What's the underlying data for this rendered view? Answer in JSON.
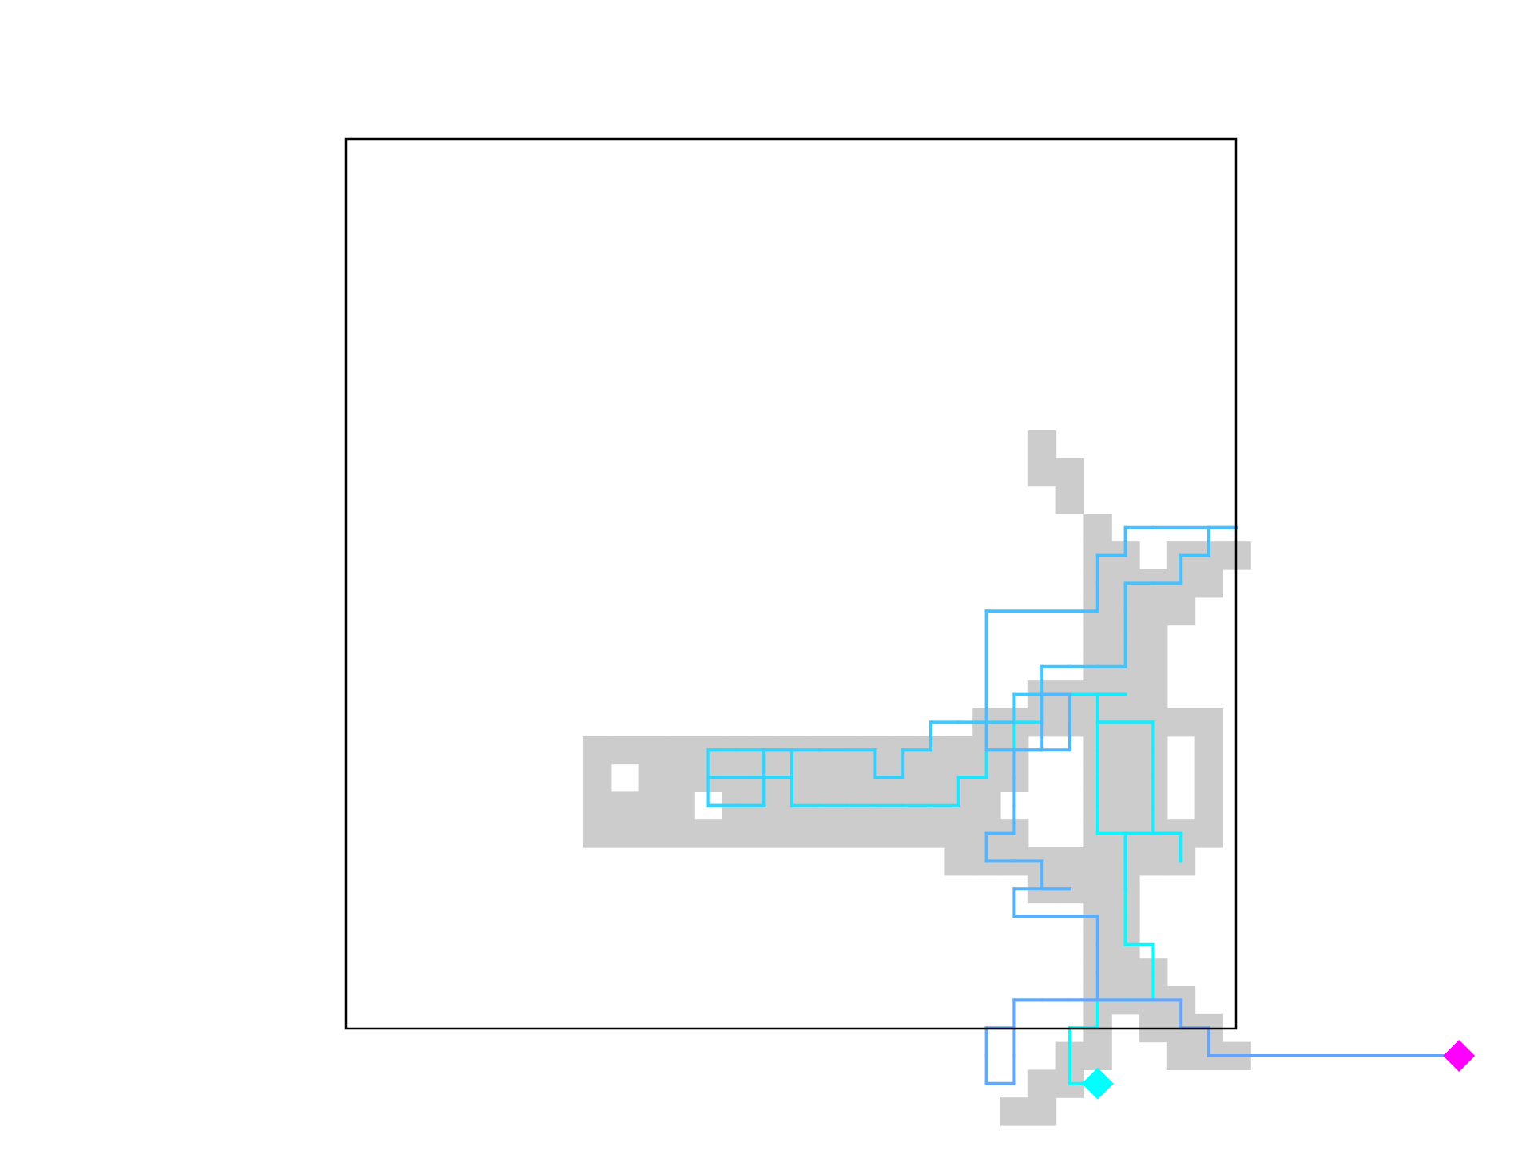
{
  "colors": {
    "background": "#ffffff",
    "frame": "#000000",
    "visited_cell": "#cccccc",
    "path_start": "#00ffff",
    "path_end": "#66a3ff",
    "start_marker": "#00ffff",
    "goal_marker": "#ff00ff"
  },
  "grid": {
    "cols": 32,
    "rows": 32
  },
  "visited_cells": [
    [
      16,
      5
    ],
    [
      16,
      6
    ],
    [
      17,
      6
    ],
    [
      17,
      7
    ],
    [
      18,
      8
    ],
    [
      18,
      9
    ],
    [
      19,
      9
    ],
    [
      21,
      9
    ],
    [
      22,
      9
    ],
    [
      23,
      9
    ],
    [
      18,
      10
    ],
    [
      19,
      10
    ],
    [
      20,
      10
    ],
    [
      21,
      10
    ],
    [
      22,
      10
    ],
    [
      18,
      11
    ],
    [
      19,
      11
    ],
    [
      20,
      11
    ],
    [
      21,
      11
    ],
    [
      18,
      12
    ],
    [
      19,
      12
    ],
    [
      20,
      12
    ],
    [
      18,
      13
    ],
    [
      19,
      13
    ],
    [
      20,
      13
    ],
    [
      16,
      14
    ],
    [
      17,
      14
    ],
    [
      18,
      14
    ],
    [
      19,
      14
    ],
    [
      20,
      14
    ],
    [
      14,
      15
    ],
    [
      15,
      15
    ],
    [
      16,
      15
    ],
    [
      17,
      15
    ],
    [
      18,
      15
    ],
    [
      19,
      15
    ],
    [
      20,
      15
    ],
    [
      21,
      15
    ],
    [
      22,
      15
    ],
    [
      0,
      16
    ],
    [
      1,
      16
    ],
    [
      2,
      16
    ],
    [
      3,
      16
    ],
    [
      4,
      16
    ],
    [
      5,
      16
    ],
    [
      6,
      16
    ],
    [
      7,
      16
    ],
    [
      8,
      16
    ],
    [
      9,
      16
    ],
    [
      10,
      16
    ],
    [
      11,
      16
    ],
    [
      12,
      16
    ],
    [
      13,
      16
    ],
    [
      14,
      16
    ],
    [
      15,
      16
    ],
    [
      18,
      16
    ],
    [
      19,
      16
    ],
    [
      20,
      16
    ],
    [
      22,
      16
    ],
    [
      0,
      17
    ],
    [
      2,
      17
    ],
    [
      3,
      17
    ],
    [
      4,
      17
    ],
    [
      5,
      17
    ],
    [
      6,
      17
    ],
    [
      7,
      17
    ],
    [
      8,
      17
    ],
    [
      9,
      17
    ],
    [
      10,
      17
    ],
    [
      11,
      17
    ],
    [
      12,
      17
    ],
    [
      13,
      17
    ],
    [
      14,
      17
    ],
    [
      15,
      17
    ],
    [
      18,
      17
    ],
    [
      19,
      17
    ],
    [
      20,
      17
    ],
    [
      22,
      17
    ],
    [
      0,
      18
    ],
    [
      1,
      18
    ],
    [
      2,
      18
    ],
    [
      3,
      18
    ],
    [
      5,
      18
    ],
    [
      6,
      18
    ],
    [
      7,
      18
    ],
    [
      8,
      18
    ],
    [
      9,
      18
    ],
    [
      10,
      18
    ],
    [
      11,
      18
    ],
    [
      12,
      18
    ],
    [
      13,
      18
    ],
    [
      14,
      18
    ],
    [
      18,
      18
    ],
    [
      19,
      18
    ],
    [
      20,
      18
    ],
    [
      22,
      18
    ],
    [
      0,
      19
    ],
    [
      1,
      19
    ],
    [
      2,
      19
    ],
    [
      3,
      19
    ],
    [
      4,
      19
    ],
    [
      5,
      19
    ],
    [
      6,
      19
    ],
    [
      7,
      19
    ],
    [
      8,
      19
    ],
    [
      9,
      19
    ],
    [
      10,
      19
    ],
    [
      11,
      19
    ],
    [
      12,
      19
    ],
    [
      13,
      19
    ],
    [
      14,
      19
    ],
    [
      15,
      19
    ],
    [
      18,
      19
    ],
    [
      19,
      19
    ],
    [
      20,
      19
    ],
    [
      21,
      19
    ],
    [
      22,
      19
    ],
    [
      13,
      20
    ],
    [
      14,
      20
    ],
    [
      15,
      20
    ],
    [
      16,
      20
    ],
    [
      17,
      20
    ],
    [
      18,
      20
    ],
    [
      19,
      20
    ],
    [
      20,
      20
    ],
    [
      21,
      20
    ],
    [
      16,
      21
    ],
    [
      17,
      21
    ],
    [
      18,
      21
    ],
    [
      19,
      21
    ],
    [
      18,
      22
    ],
    [
      19,
      22
    ],
    [
      18,
      23
    ],
    [
      19,
      23
    ],
    [
      18,
      24
    ],
    [
      19,
      24
    ],
    [
      20,
      24
    ],
    [
      18,
      25
    ],
    [
      19,
      25
    ],
    [
      20,
      25
    ],
    [
      21,
      25
    ],
    [
      18,
      26
    ],
    [
      20,
      26
    ],
    [
      21,
      26
    ],
    [
      22,
      26
    ],
    [
      17,
      27
    ],
    [
      18,
      27
    ],
    [
      21,
      27
    ],
    [
      22,
      27
    ],
    [
      23,
      27
    ],
    [
      16,
      28
    ],
    [
      17,
      28
    ],
    [
      15,
      29
    ],
    [
      16,
      29
    ]
  ],
  "path": [
    [
      18.5,
      28.5
    ],
    [
      17.5,
      28.5
    ],
    [
      17.5,
      26.5
    ],
    [
      18.5,
      26.5
    ],
    [
      18.5,
      25.5
    ],
    [
      19.5,
      25.5
    ],
    [
      20.5,
      25.5
    ],
    [
      20.5,
      24.5
    ],
    [
      20.5,
      23.5
    ],
    [
      19.5,
      23.5
    ],
    [
      19.5,
      22.5
    ],
    [
      19.5,
      21.5
    ],
    [
      19.5,
      20.5
    ],
    [
      19.5,
      19.5
    ],
    [
      18.5,
      19.5
    ],
    [
      18.5,
      18.5
    ],
    [
      18.5,
      17.5
    ],
    [
      18.5,
      16.5
    ],
    [
      18.5,
      15.5
    ],
    [
      19.5,
      15.5
    ],
    [
      20.5,
      15.5
    ],
    [
      20.5,
      16.5
    ],
    [
      20.5,
      17.5
    ],
    [
      20.5,
      18.5
    ],
    [
      20.5,
      19.5
    ],
    [
      19.5,
      19.5
    ],
    [
      19.5,
      20.5
    ],
    [
      19.5,
      21.5
    ],
    [
      19.5,
      20.5
    ],
    [
      19.5,
      19.5
    ],
    [
      21.5,
      19.5
    ],
    [
      21.5,
      20.5
    ],
    [
      21.5,
      19.5
    ],
    [
      20.5,
      19.5
    ],
    [
      20.5,
      15.5
    ],
    [
      18.5,
      15.5
    ],
    [
      18.5,
      14.5
    ],
    [
      19.5,
      14.5
    ],
    [
      18.5,
      14.5
    ],
    [
      16.5,
      14.5
    ],
    [
      16.5,
      15.5
    ],
    [
      15.5,
      15.5
    ],
    [
      15.5,
      16.5
    ],
    [
      14.5,
      16.5
    ],
    [
      14.5,
      17.5
    ],
    [
      13.5,
      17.5
    ],
    [
      13.5,
      18.5
    ],
    [
      12.5,
      18.5
    ],
    [
      11.5,
      18.5
    ],
    [
      10.5,
      18.5
    ],
    [
      9.5,
      18.5
    ],
    [
      8.5,
      18.5
    ],
    [
      7.5,
      18.5
    ],
    [
      7.5,
      17.5
    ],
    [
      6.5,
      17.5
    ],
    [
      6.5,
      18.5
    ],
    [
      5.5,
      18.5
    ],
    [
      4.5,
      18.5
    ],
    [
      4.5,
      17.5
    ],
    [
      4.5,
      16.5
    ],
    [
      5.5,
      16.5
    ],
    [
      6.5,
      16.5
    ],
    [
      6.5,
      17.5
    ],
    [
      7.5,
      17.5
    ],
    [
      7.5,
      16.5
    ],
    [
      6.5,
      16.5
    ],
    [
      5.5,
      16.5
    ],
    [
      4.5,
      16.5
    ],
    [
      4.5,
      17.5
    ],
    [
      4.5,
      18.5
    ],
    [
      5.5,
      18.5
    ],
    [
      6.5,
      18.5
    ],
    [
      6.5,
      17.5
    ],
    [
      6.5,
      18.5
    ],
    [
      5.5,
      18.5
    ],
    [
      4.5,
      18.5
    ],
    [
      4.5,
      17.5
    ],
    [
      6.5,
      17.5
    ],
    [
      6.5,
      16.5
    ],
    [
      7.5,
      16.5
    ],
    [
      8.5,
      16.5
    ],
    [
      9.5,
      16.5
    ],
    [
      10.5,
      16.5
    ],
    [
      10.5,
      17.5
    ],
    [
      11.5,
      17.5
    ],
    [
      11.5,
      16.5
    ],
    [
      12.5,
      16.5
    ],
    [
      12.5,
      15.5
    ],
    [
      13.5,
      15.5
    ],
    [
      14.5,
      15.5
    ],
    [
      15.5,
      15.5
    ],
    [
      15.5,
      14.5
    ],
    [
      16.5,
      14.5
    ],
    [
      16.5,
      13.5
    ],
    [
      17.5,
      13.5
    ],
    [
      18.5,
      13.5
    ],
    [
      19.5,
      13.5
    ],
    [
      19.5,
      12.5
    ],
    [
      19.5,
      11.5
    ],
    [
      19.5,
      10.5
    ],
    [
      20.5,
      10.5
    ],
    [
      21.5,
      10.5
    ],
    [
      21.5,
      9.5
    ],
    [
      22.5,
      9.5
    ],
    [
      22.5,
      8.5
    ],
    [
      23.5,
      8.5
    ],
    [
      20.5,
      8.5
    ],
    [
      19.5,
      8.5
    ],
    [
      19.5,
      9.5
    ],
    [
      18.5,
      9.5
    ],
    [
      18.5,
      10.5
    ],
    [
      18.5,
      11.5
    ],
    [
      14.5,
      11.5
    ],
    [
      14.5,
      15.5
    ],
    [
      14.5,
      16.5
    ],
    [
      15.5,
      16.5
    ],
    [
      16.5,
      16.5
    ],
    [
      16.5,
      15.5
    ],
    [
      16.5,
      14.5
    ],
    [
      17.5,
      14.5
    ],
    [
      17.5,
      15.5
    ],
    [
      17.5,
      16.5
    ],
    [
      15.5,
      16.5
    ],
    [
      15.5,
      17.5
    ],
    [
      15.5,
      18.5
    ],
    [
      15.5,
      19.5
    ],
    [
      14.5,
      19.5
    ],
    [
      14.5,
      20.5
    ],
    [
      15.5,
      20.5
    ],
    [
      16.5,
      20.5
    ],
    [
      16.5,
      21.5
    ],
    [
      17.5,
      21.5
    ],
    [
      15.5,
      21.5
    ],
    [
      15.5,
      22.5
    ],
    [
      16.5,
      22.5
    ],
    [
      17.5,
      22.5
    ],
    [
      18.5,
      22.5
    ],
    [
      18.5,
      23.5
    ],
    [
      18.5,
      24.5
    ],
    [
      18.5,
      25.5
    ],
    [
      15.5,
      25.5
    ],
    [
      15.5,
      26.5
    ],
    [
      14.5,
      26.5
    ],
    [
      14.5,
      27.5
    ],
    [
      14.5,
      28.5
    ],
    [
      15.5,
      28.5
    ],
    [
      15.5,
      27.5
    ],
    [
      15.5,
      26.5
    ],
    [
      15.5,
      25.5
    ],
    [
      16.5,
      25.5
    ],
    [
      17.5,
      25.5
    ],
    [
      21.5,
      25.5
    ],
    [
      21.5,
      26.5
    ],
    [
      22.5,
      26.5
    ],
    [
      22.5,
      27.5
    ],
    [
      31.5,
      27.5
    ]
  ],
  "start_marker": {
    "icon": "cyan-diamond",
    "cell": [
      18.5,
      28.5
    ]
  },
  "goal_marker": {
    "icon": "magenta-diamond",
    "cell": [
      31.5,
      27.5
    ]
  }
}
